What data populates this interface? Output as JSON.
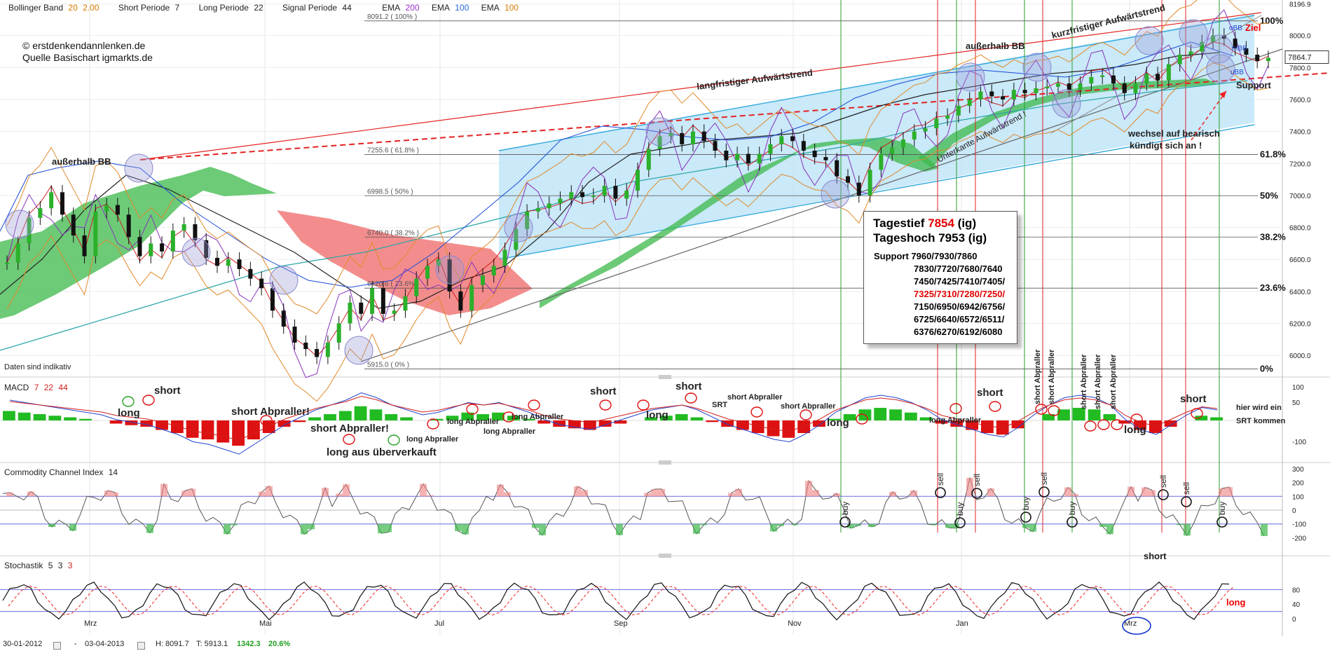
{
  "header": {
    "bb_label": "Bollinger Band",
    "bb_p1": "20",
    "bb_p2": "2.00",
    "short_label": "Short Periode",
    "short_val": "7",
    "long_label": "Long Periode",
    "long_val": "22",
    "signal_label": "Signal Periode",
    "signal_val": "44",
    "ema1_label": "EMA",
    "ema1_val": "200",
    "ema2_label": "EMA",
    "ema2_val": "100",
    "ema3_label": "EMA",
    "ema3_val": "100"
  },
  "copyright": {
    "line1": "© erstdenkendannlenken.de",
    "line2": "Quelle Basischart igmarkts.de"
  },
  "panels": {
    "macd_title": "MACD",
    "macd_p1": "7",
    "macd_p2": "22",
    "macd_p3": "44",
    "cci_title": "Commodity Channel Index",
    "cci_p": "14",
    "stoch_title": "Stochastik",
    "stoch_p1": "5",
    "stoch_p2": "3",
    "stoch_p3": "3"
  },
  "infobox": {
    "tagestief_label": "Tagestief",
    "tagestief_val": "7854",
    "tagestief_suffix": "(ig)",
    "tageshoch": "Tageshoch 7953 (ig)",
    "support_lines": [
      "Support 7960/7930/7860",
      "7830/7720/7680/7640",
      "7450/7425/7410/7405/",
      "7325/7310/7280/7250/",
      "7150/6950/6942/6756/",
      "6725/6640/6572/6511/",
      "6376/6270/6192/6080"
    ]
  },
  "footer": {
    "from": "30-01-2012",
    "dash": "-",
    "to": "03-04-2013",
    "high": "H: 8091.7",
    "low": "T: 5913.1",
    "diff": "1342.3",
    "pct": "20.6%"
  },
  "colors": {
    "cloud_green": "#3cb84a",
    "cloud_red": "#f07070",
    "bb_fill": "#bde4f7",
    "trend_red": "#e22222",
    "trend_blue": "#33aadd",
    "macd_up": "#22bb22",
    "macd_down": "#dd1111"
  },
  "chart_data": {
    "type": "line",
    "title": "",
    "x_labels": [
      "Mrz",
      "Mai",
      "Jul",
      "Sep",
      "Nov",
      "Jan",
      "Mrz"
    ],
    "price_axis": {
      "ticks": [
        "8196.9",
        "8000.0",
        "7800.0",
        "7600.0",
        "7400.0",
        "7200.0",
        "7000.0",
        "6800.0",
        "6600.0",
        "6400.0",
        "6200.0",
        "6000.0"
      ],
      "current": "7864.7",
      "ylim": [
        5913.1,
        8196.9
      ]
    },
    "fibonacci": [
      {
        "label": "8091.2 ( 100% )",
        "pct": "100%",
        "value": 8091.2
      },
      {
        "label": "7255.6 ( 61.8% )",
        "pct": "61.8%",
        "value": 7255.6
      },
      {
        "label": "6998.5 ( 50% )",
        "pct": "50%",
        "value": 6998.5
      },
      {
        "label": "6740.0 ( 38.2% )",
        "pct": "38.2%",
        "value": 6740.0
      },
      {
        "label": "6420.6 ( 23.6% )",
        "pct": "23.6%",
        "value": 6420.6
      },
      {
        "label": "5915.0 ( 0% )",
        "pct": "0%",
        "value": 5915.0
      }
    ],
    "price_series": [
      6580,
      6700,
      6860,
      6920,
      7020,
      6880,
      6750,
      6620,
      6900,
      6940,
      6880,
      6740,
      6620,
      6700,
      6650,
      6780,
      6820,
      6720,
      6610,
      6560,
      6600,
      6540,
      6480,
      6420,
      6280,
      6180,
      6080,
      6040,
      5990,
      6080,
      6200,
      6330,
      6260,
      6420,
      6260,
      6280,
      6370,
      6480,
      6560,
      6600,
      6400,
      6280,
      6440,
      6500,
      6560,
      6660,
      6790,
      6900,
      6920,
      6950,
      6980,
      7020,
      6990,
      7000,
      7060,
      6980,
      7030,
      7160,
      7290,
      7370,
      7390,
      7320,
      7400,
      7340,
      7280,
      7220,
      7260,
      7200,
      7260,
      7320,
      7370,
      7340,
      7280,
      7240,
      7220,
      7120,
      7080,
      7000,
      7160,
      7260,
      7300,
      7350,
      7400,
      7420,
      7480,
      7500,
      7560,
      7600,
      7650,
      7620,
      7600,
      7660,
      7640,
      7670,
      7680,
      7700,
      7660,
      7700,
      7740,
      7750,
      7700,
      7640,
      7700,
      7760,
      7720,
      7820,
      7880,
      7900,
      7960,
      8000,
      7980,
      7920,
      7880,
      7840,
      7860
    ],
    "annotations": [
      "außerhalb BB",
      "außerhalb BB",
      "langfristiger Aufwärtstrend",
      "kurzfristiger Aufwärtstrend",
      "Unterkante Aufwärtstrend !",
      "Support",
      "wechsel auf bearisch",
      "kündigt sich an !",
      "Ziel",
      "oBB",
      "mBB",
      "uBB",
      "Daten sind indikativ"
    ],
    "macd_axis": [
      "100",
      "50",
      "-100"
    ],
    "macd_hist": [
      30,
      25,
      20,
      15,
      10,
      5,
      0,
      -10,
      -15,
      -20,
      -30,
      -40,
      -55,
      -60,
      -70,
      -80,
      -60,
      -40,
      -20,
      -5,
      10,
      20,
      30,
      45,
      35,
      20,
      10,
      0,
      5,
      15,
      25,
      20,
      25,
      15,
      5,
      -10,
      -20,
      -25,
      -30,
      -20,
      -10,
      0,
      10,
      15,
      20,
      10,
      -5,
      -20,
      -30,
      -40,
      -50,
      -55,
      -40,
      -20,
      5,
      20,
      35,
      40,
      35,
      25,
      10,
      -10,
      -20,
      -30,
      -40,
      -45,
      -25,
      0,
      20,
      35,
      40,
      35,
      20,
      -10,
      -30,
      -40,
      -20,
      0,
      15,
      10
    ],
    "macd_labels": [
      "short",
      "long",
      "short Abpraller!",
      "short Abpraller!",
      "long aus überverkauft",
      "long Abpraller",
      "long Abpraller",
      "long Abpraller",
      "long Abpraller",
      "short",
      "long",
      "short",
      "SRT",
      "short Abpraller",
      "short Abpraller",
      "long",
      "long Abpraller",
      "short",
      "short Abpraller",
      "short Abpraller",
      "short Abpraller",
      "short Abpraller",
      "short Abpraller",
      "long",
      "short",
      "hier wird ein",
      "SRT kommen"
    ],
    "cci_axis": [
      "300",
      "200",
      "100",
      "0",
      "-100",
      "-200"
    ],
    "cci_labels": [
      "buy",
      "sell",
      "buy",
      "sell",
      "buy",
      "sell",
      "buy",
      "sell",
      "sell",
      "buy"
    ],
    "stoch_axis": [
      "80",
      "40",
      "0"
    ],
    "stoch_labels": [
      "short",
      "long"
    ]
  }
}
